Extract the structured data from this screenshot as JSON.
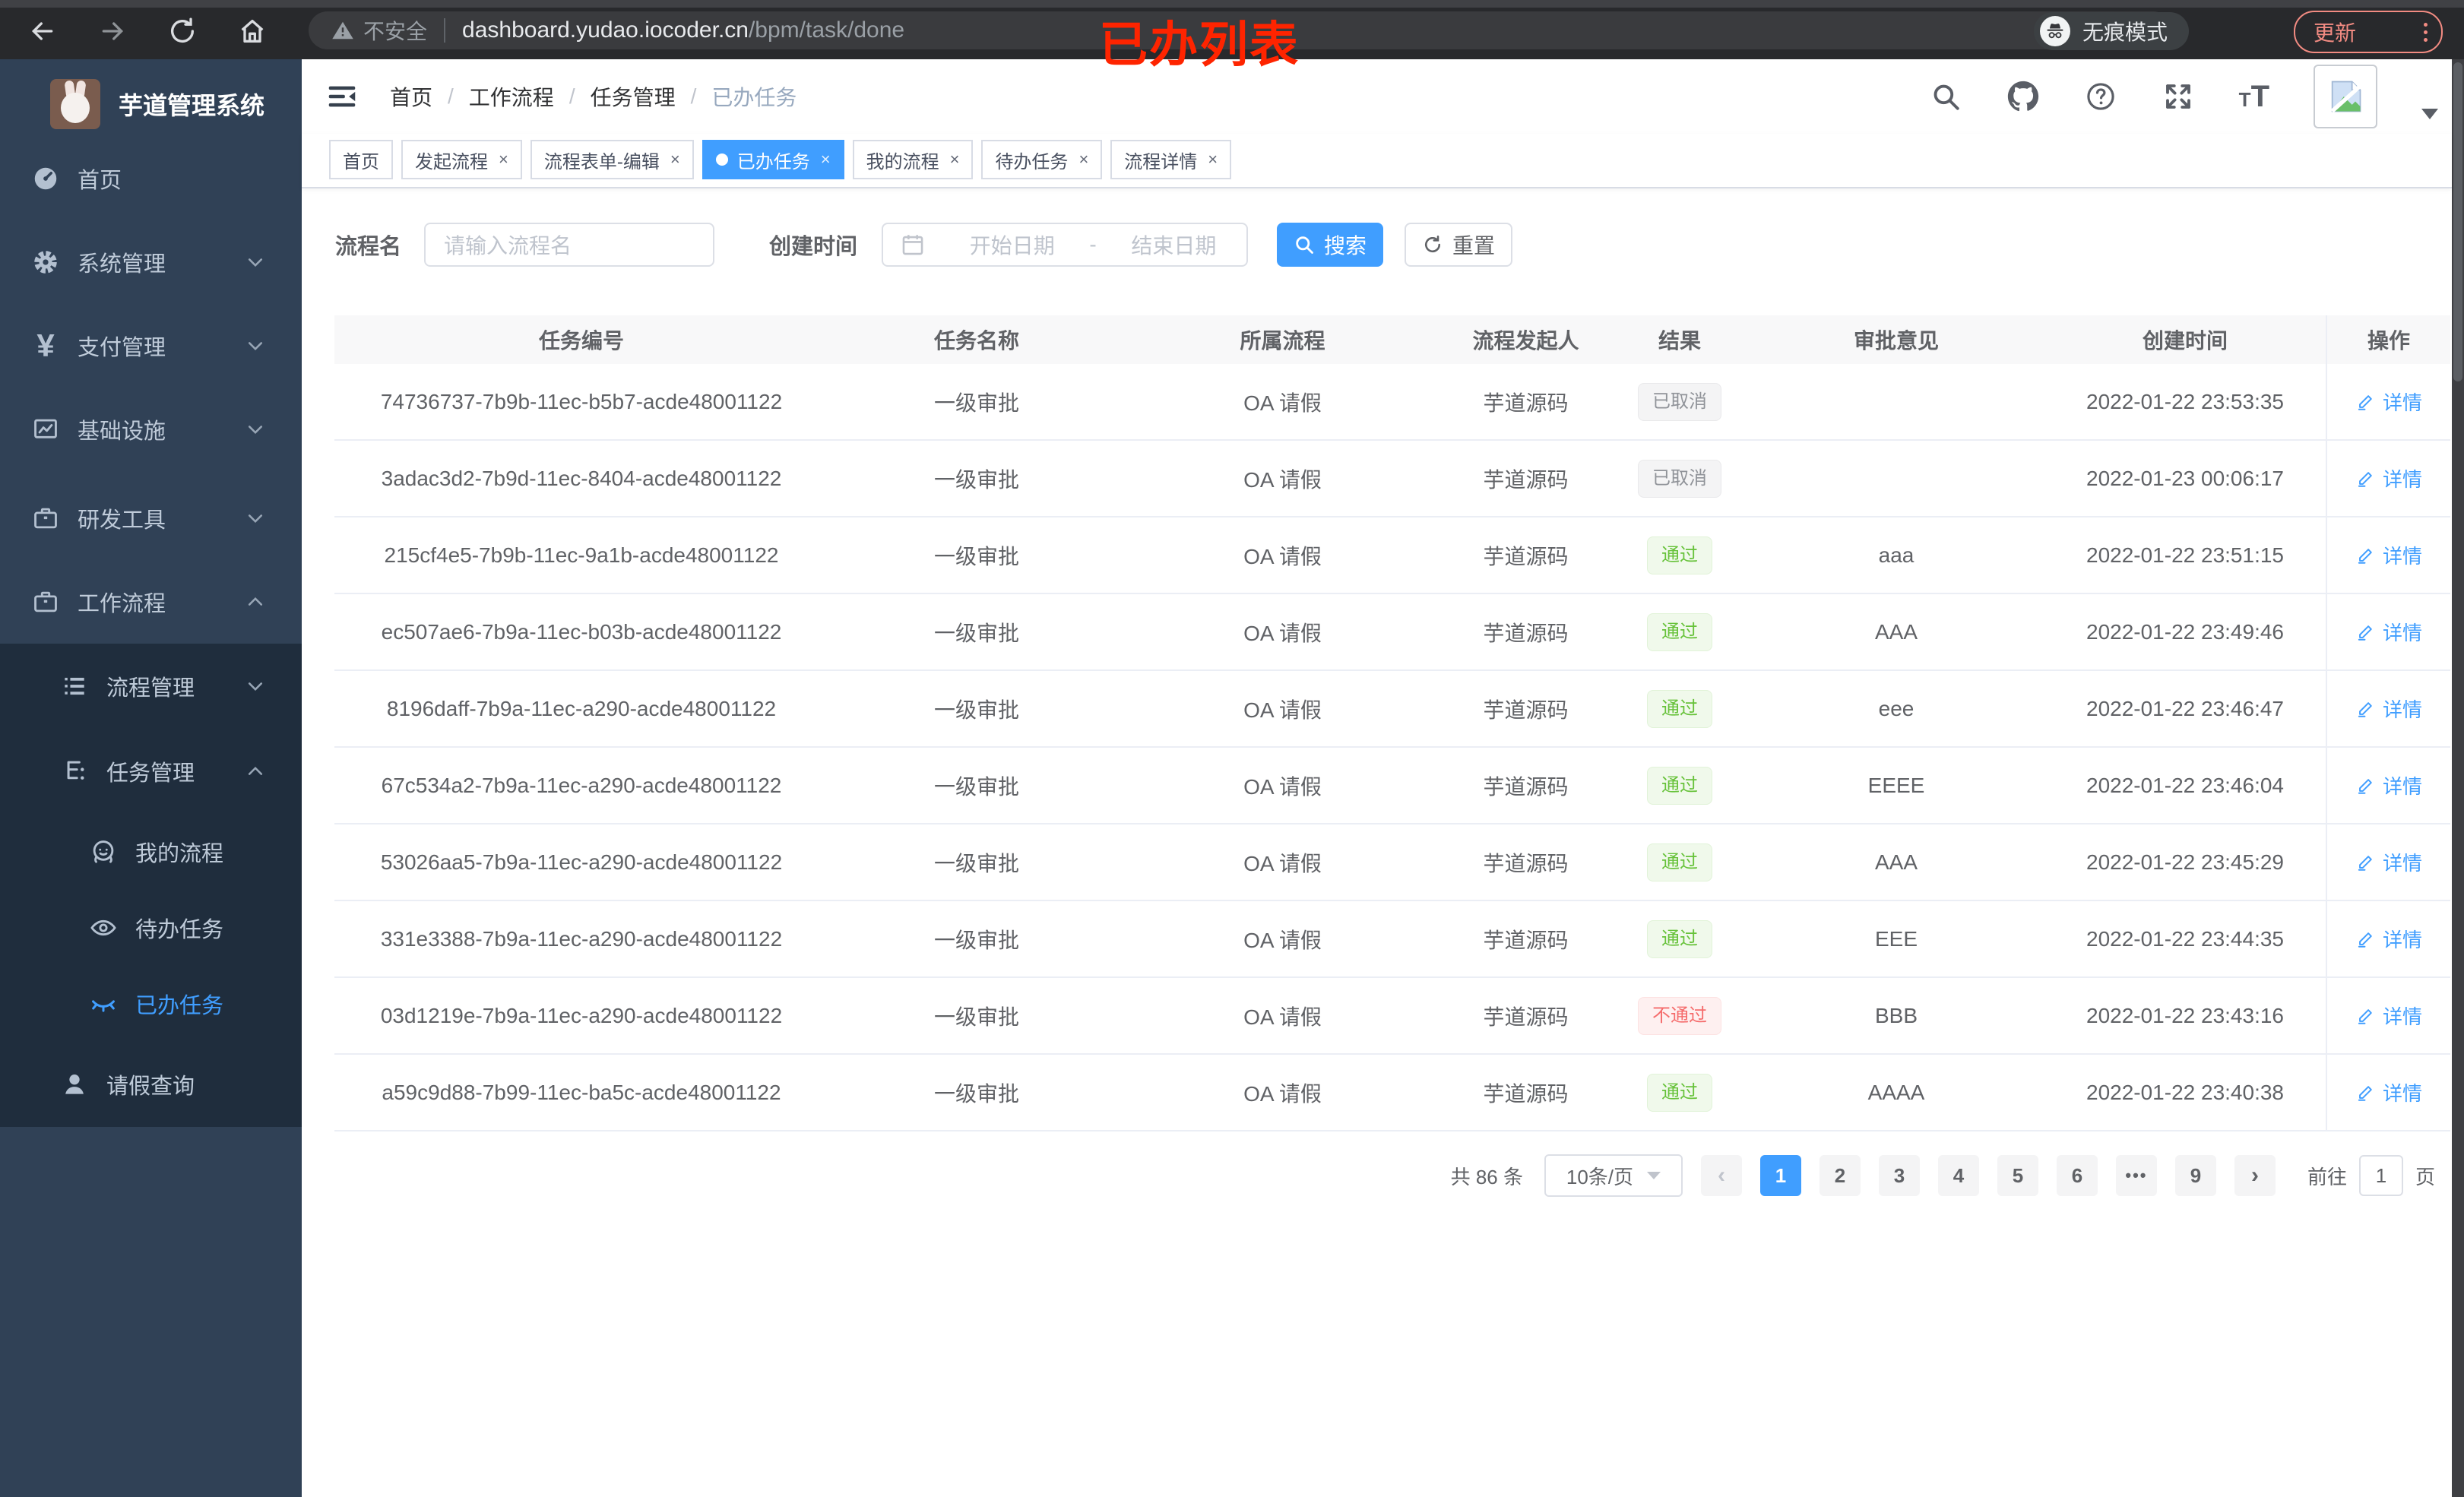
{
  "browser": {
    "security_label": "不安全",
    "url_host": "dashboard.yudao.iocoder.cn",
    "url_path": "/bpm/task/done",
    "incognito_label": "无痕模式",
    "update_label": "更新"
  },
  "annotation": "已办列表",
  "sidebar": {
    "title": "芋道管理系统",
    "items": [
      {
        "name": "home",
        "label": "首页",
        "icon": "dashboard-icon",
        "level": 1,
        "chevron": null,
        "active": false
      },
      {
        "name": "system-management",
        "label": "系统管理",
        "icon": "gear-icon",
        "level": 1,
        "chevron": "down",
        "active": false
      },
      {
        "name": "payment-management",
        "label": "支付管理",
        "icon": "yen-icon",
        "level": 1,
        "chevron": "down",
        "active": false
      },
      {
        "name": "infrastructure",
        "label": "基础设施",
        "icon": "monitor-icon",
        "level": 1,
        "chevron": "down",
        "active": false
      },
      {
        "name": "dev-tools",
        "label": "研发工具",
        "icon": "briefcase-icon",
        "level": 1,
        "chevron": "down",
        "active": false
      },
      {
        "name": "workflow",
        "label": "工作流程",
        "icon": "briefcase-icon",
        "level": 1,
        "chevron": "up",
        "active": false
      },
      {
        "name": "process-management",
        "label": "流程管理",
        "icon": "list-icon",
        "level": 2,
        "chevron": "down",
        "active": false
      },
      {
        "name": "task-management",
        "label": "任务管理",
        "icon": "tree-icon",
        "level": 2,
        "chevron": "up",
        "active": false
      },
      {
        "name": "my-process",
        "label": "我的流程",
        "icon": "face-icon",
        "level": 3,
        "chevron": null,
        "active": false
      },
      {
        "name": "todo-tasks",
        "label": "待办任务",
        "icon": "eye-icon",
        "level": 3,
        "chevron": null,
        "active": false
      },
      {
        "name": "done-tasks",
        "label": "已办任务",
        "icon": "eye-closed-icon",
        "level": 3,
        "chevron": null,
        "active": true
      },
      {
        "name": "leave-query",
        "label": "请假查询",
        "icon": "user-icon",
        "level": 2,
        "chevron": null,
        "active": false
      }
    ]
  },
  "breadcrumb": [
    "首页",
    "工作流程",
    "任务管理",
    "已办任务"
  ],
  "tabs": [
    {
      "name": "tab-home",
      "label": "首页",
      "closable": false,
      "active": false
    },
    {
      "name": "tab-start-process",
      "label": "发起流程",
      "closable": true,
      "active": false
    },
    {
      "name": "tab-process-form-edit",
      "label": "流程表单-编辑",
      "closable": true,
      "active": false
    },
    {
      "name": "tab-done-tasks",
      "label": "已办任务",
      "closable": true,
      "active": true
    },
    {
      "name": "tab-my-process",
      "label": "我的流程",
      "closable": true,
      "active": false
    },
    {
      "name": "tab-todo-tasks",
      "label": "待办任务",
      "closable": true,
      "active": false
    },
    {
      "name": "tab-process-detail",
      "label": "流程详情",
      "closable": true,
      "active": false
    }
  ],
  "filters": {
    "name_label": "流程名",
    "name_placeholder": "请输入流程名",
    "date_label": "创建时间",
    "date_start_placeholder": "开始日期",
    "date_separator": "-",
    "date_end_placeholder": "结束日期",
    "search_label": "搜索",
    "reset_label": "重置"
  },
  "table": {
    "columns": [
      "任务编号",
      "任务名称",
      "所属流程",
      "流程发起人",
      "结果",
      "审批意见",
      "创建时间",
      "操作"
    ],
    "action_label": "详情",
    "rows": [
      {
        "id": "74736737-7b9b-11ec-b5b7-acde48001122",
        "name": "一级审批",
        "process": "OA 请假",
        "starter": "芋道源码",
        "result": "已取消",
        "result_type": "info",
        "opinion": "",
        "created": "2022-01-22 23:53:35"
      },
      {
        "id": "3adac3d2-7b9d-11ec-8404-acde48001122",
        "name": "一级审批",
        "process": "OA 请假",
        "starter": "芋道源码",
        "result": "已取消",
        "result_type": "info",
        "opinion": "",
        "created": "2022-01-23 00:06:17"
      },
      {
        "id": "215cf4e5-7b9b-11ec-9a1b-acde48001122",
        "name": "一级审批",
        "process": "OA 请假",
        "starter": "芋道源码",
        "result": "通过",
        "result_type": "success",
        "opinion": "aaa",
        "created": "2022-01-22 23:51:15"
      },
      {
        "id": "ec507ae6-7b9a-11ec-b03b-acde48001122",
        "name": "一级审批",
        "process": "OA 请假",
        "starter": "芋道源码",
        "result": "通过",
        "result_type": "success",
        "opinion": "AAA",
        "created": "2022-01-22 23:49:46"
      },
      {
        "id": "8196daff-7b9a-11ec-a290-acde48001122",
        "name": "一级审批",
        "process": "OA 请假",
        "starter": "芋道源码",
        "result": "通过",
        "result_type": "success",
        "opinion": "eee",
        "created": "2022-01-22 23:46:47"
      },
      {
        "id": "67c534a2-7b9a-11ec-a290-acde48001122",
        "name": "一级审批",
        "process": "OA 请假",
        "starter": "芋道源码",
        "result": "通过",
        "result_type": "success",
        "opinion": "EEEE",
        "created": "2022-01-22 23:46:04"
      },
      {
        "id": "53026aa5-7b9a-11ec-a290-acde48001122",
        "name": "一级审批",
        "process": "OA 请假",
        "starter": "芋道源码",
        "result": "通过",
        "result_type": "success",
        "opinion": "AAA",
        "created": "2022-01-22 23:45:29"
      },
      {
        "id": "331e3388-7b9a-11ec-a290-acde48001122",
        "name": "一级审批",
        "process": "OA 请假",
        "starter": "芋道源码",
        "result": "通过",
        "result_type": "success",
        "opinion": "EEE",
        "created": "2022-01-22 23:44:35"
      },
      {
        "id": "03d1219e-7b9a-11ec-a290-acde48001122",
        "name": "一级审批",
        "process": "OA 请假",
        "starter": "芋道源码",
        "result": "不通过",
        "result_type": "danger",
        "opinion": "BBB",
        "created": "2022-01-22 23:43:16"
      },
      {
        "id": "a59c9d88-7b99-11ec-ba5c-acde48001122",
        "name": "一级审批",
        "process": "OA 请假",
        "starter": "芋道源码",
        "result": "通过",
        "result_type": "success",
        "opinion": "AAAA",
        "created": "2022-01-22 23:40:38"
      }
    ]
  },
  "pagination": {
    "total_label": "共 86 条",
    "page_size": "10条/页",
    "pages": [
      "1",
      "2",
      "3",
      "4",
      "5",
      "6",
      "•••",
      "9"
    ],
    "active_page": "1",
    "prev_arrow": "‹",
    "next_arrow": "›",
    "goto_label": "前往",
    "goto_value": "1",
    "goto_suffix": "页"
  }
}
